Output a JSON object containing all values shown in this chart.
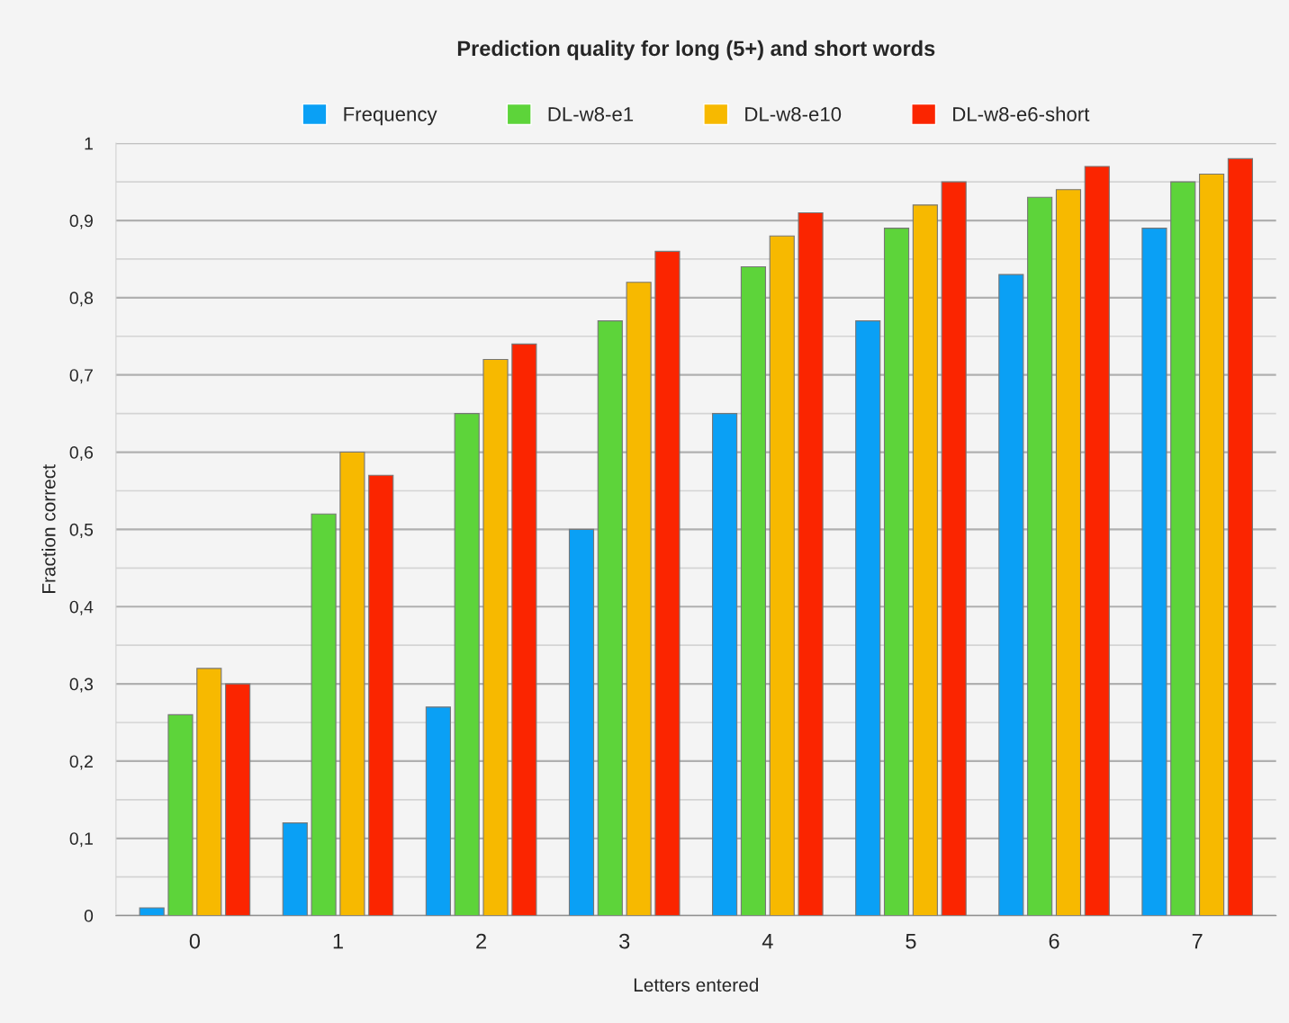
{
  "chart_data": {
    "type": "bar",
    "title": "Prediction quality for long (5+) and short words",
    "xlabel": "Letters entered",
    "ylabel": "Fraction correct",
    "categories": [
      "0",
      "1",
      "2",
      "3",
      "4",
      "5",
      "6",
      "7"
    ],
    "series": [
      {
        "name": "Frequency",
        "color": "#0aa0f5",
        "values": [
          0.01,
          0.12,
          0.27,
          0.5,
          0.65,
          0.77,
          0.83,
          0.89
        ]
      },
      {
        "name": "DL-w8-e1",
        "color": "#5dd43a",
        "values": [
          0.26,
          0.52,
          0.65,
          0.77,
          0.84,
          0.89,
          0.93,
          0.95
        ]
      },
      {
        "name": "DL-w8-e10",
        "color": "#f7b900",
        "values": [
          0.32,
          0.6,
          0.72,
          0.82,
          0.88,
          0.92,
          0.94,
          0.96
        ]
      },
      {
        "name": "DL-w8-e6-short",
        "color": "#fb2500",
        "values": [
          0.3,
          0.57,
          0.74,
          0.86,
          0.91,
          0.95,
          0.97,
          0.98
        ]
      }
    ],
    "ylim": [
      0,
      1
    ],
    "yticks": [
      {
        "value": 0,
        "label": "0"
      },
      {
        "value": 0.05,
        "label": null
      },
      {
        "value": 0.1,
        "label": "0,1"
      },
      {
        "value": 0.15,
        "label": null
      },
      {
        "value": 0.2,
        "label": "0,2"
      },
      {
        "value": 0.25,
        "label": null
      },
      {
        "value": 0.3,
        "label": "0,3"
      },
      {
        "value": 0.35,
        "label": null
      },
      {
        "value": 0.4,
        "label": "0,4"
      },
      {
        "value": 0.45,
        "label": null
      },
      {
        "value": 0.5,
        "label": "0,5"
      },
      {
        "value": 0.55,
        "label": null
      },
      {
        "value": 0.6,
        "label": "0,6"
      },
      {
        "value": 0.65,
        "label": null
      },
      {
        "value": 0.7,
        "label": "0,7"
      },
      {
        "value": 0.75,
        "label": null
      },
      {
        "value": 0.8,
        "label": "0,8"
      },
      {
        "value": 0.85,
        "label": null
      },
      {
        "value": 0.9,
        "label": "0,9"
      },
      {
        "value": 0.95,
        "label": null
      },
      {
        "value": 1,
        "label": "1"
      }
    ],
    "grid": "y",
    "legend": "top"
  }
}
